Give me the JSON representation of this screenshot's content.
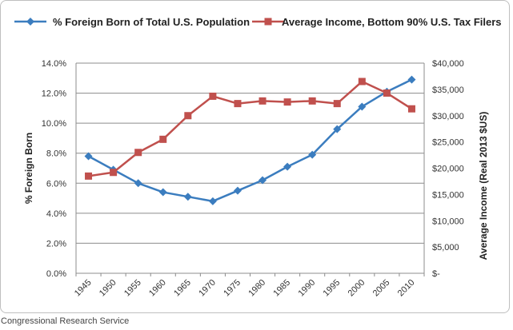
{
  "chart_data": {
    "type": "line",
    "categories": [
      "1945",
      "1950",
      "1955",
      "1960",
      "1965",
      "1970",
      "1975",
      "1980",
      "1985",
      "1990",
      "1995",
      "2000",
      "2005",
      "2010"
    ],
    "series": [
      {
        "name": "% Foreign Born of Total U.S. Population",
        "axis": "left",
        "color": "#3b7dbf",
        "marker": "diamond",
        "values": [
          7.8,
          6.9,
          6.0,
          5.4,
          5.1,
          4.8,
          5.5,
          6.2,
          7.1,
          7.9,
          9.6,
          11.1,
          12.1,
          12.9
        ]
      },
      {
        "name": "Average Income, Bottom 90% U.S. Tax Filers",
        "axis": "right",
        "color": "#c0504d",
        "marker": "square",
        "values": [
          18500,
          19200,
          23000,
          25500,
          30000,
          33700,
          32300,
          32800,
          32600,
          32800,
          32300,
          36500,
          34300,
          31300
        ]
      }
    ],
    "y_left": {
      "label": "% Foreign Born",
      "ylim": [
        0,
        14
      ],
      "ticks": [
        0,
        2,
        4,
        6,
        8,
        10,
        12,
        14
      ],
      "tick_labels": [
        "0.0%",
        "2.0%",
        "4.0%",
        "6.0%",
        "8.0%",
        "10.0%",
        "12.0%",
        "14.0%"
      ]
    },
    "y_right": {
      "label": "Average Income (Real 2013 $US)",
      "ylim": [
        0,
        40000
      ],
      "ticks": [
        0,
        5000,
        10000,
        15000,
        20000,
        25000,
        30000,
        35000,
        40000
      ],
      "tick_labels": [
        "$-",
        "$5,000",
        "$10,000",
        "$15,000",
        "$20,000",
        "$25,000",
        "$30,000",
        "$35,000",
        "$40,000"
      ]
    },
    "grid": true,
    "legend_position": "top"
  },
  "source": "Congressional Research Service"
}
